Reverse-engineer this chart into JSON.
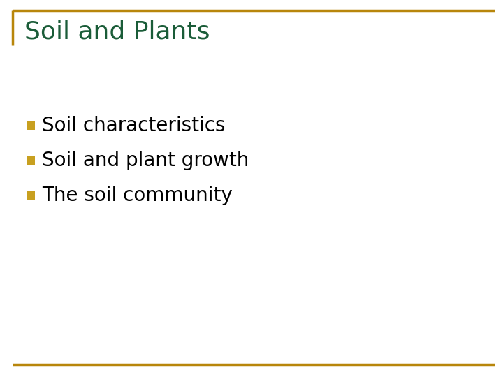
{
  "title": "Soil and Plants",
  "title_color": "#1a5c38",
  "title_fontsize": 26,
  "background_color": "#ffffff",
  "border_color": "#b8860b",
  "bullet_color": "#c8a020",
  "bullet_items": [
    "Soil characteristics",
    "Soil and plant growth",
    "The soil community"
  ],
  "bullet_fontsize": 20,
  "bullet_text_color": "#000000",
  "border_linewidth": 2.5,
  "bottom_line_color": "#b8860b"
}
